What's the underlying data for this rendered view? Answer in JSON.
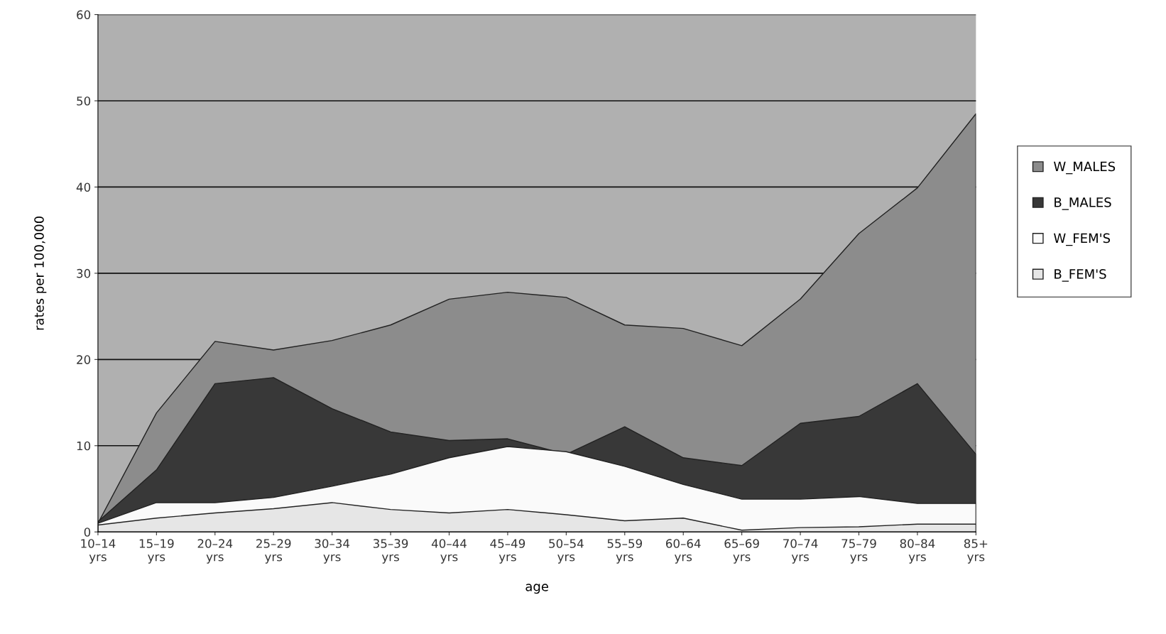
{
  "chart_data": {
    "type": "area",
    "xlabel": "age",
    "ylabel": "rates per 100,000",
    "categories": [
      "10–14\nyrs",
      "15–19\nyrs",
      "20–24\nyrs",
      "25–29\nyrs",
      "30–34\nyrs",
      "35–39\nyrs",
      "40–44\nyrs",
      "45–49\nyrs",
      "50–54\nyrs",
      "55–59\nyrs",
      "60–64\nyrs",
      "65–69\nyrs",
      "70–74\nyrs",
      "75–79\nyrs",
      "80–84\nyrs",
      "85+\nyrs"
    ],
    "series": [
      {
        "name": "W_MALES",
        "color": "#8c8c8c",
        "values": [
          1.0,
          13.8,
          22.1,
          21.1,
          22.2,
          24.0,
          27.0,
          27.8,
          27.2,
          24.0,
          23.6,
          21.6,
          27.0,
          34.6,
          39.9,
          48.5
        ]
      },
      {
        "name": "B_MALES",
        "color": "#383838",
        "values": [
          1.2,
          7.2,
          17.2,
          17.9,
          14.3,
          11.6,
          10.6,
          10.8,
          9.0,
          12.2,
          8.6,
          7.7,
          12.6,
          13.4,
          17.2,
          9.0
        ]
      },
      {
        "name": "W_FEM'S",
        "color": "#fafafa",
        "values": [
          1.0,
          3.4,
          3.4,
          4.0,
          5.3,
          6.7,
          8.6,
          9.9,
          9.3,
          7.6,
          5.5,
          3.8,
          3.8,
          4.1,
          3.3,
          3.3
        ]
      },
      {
        "name": "B_FEM'S",
        "color": "#e6e6e6",
        "values": [
          0.8,
          1.6,
          2.2,
          2.7,
          3.4,
          2.6,
          2.2,
          2.6,
          2.0,
          1.3,
          1.6,
          0.2,
          0.5,
          0.6,
          0.9,
          0.9
        ]
      }
    ],
    "ylim": [
      0,
      60
    ],
    "yticks": [
      0,
      10,
      20,
      30,
      40,
      50,
      60
    ],
    "grid": "y",
    "legend": "right"
  }
}
